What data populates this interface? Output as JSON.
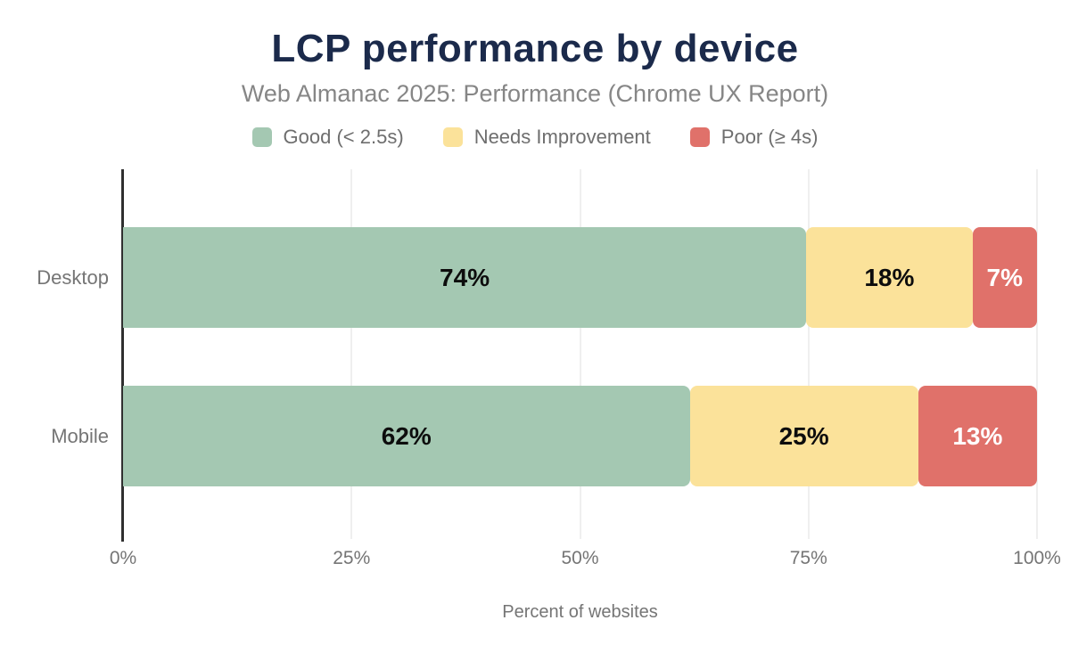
{
  "title": "LCP performance by device",
  "subtitle": "Web Almanac 2025: Performance (Chrome UX Report)",
  "xlabel": "Percent of websites",
  "chart_data": {
    "type": "bar",
    "orientation": "horizontal",
    "stacked": true,
    "title": "LCP performance by device",
    "subtitle": "Web Almanac 2025: Performance (Chrome UX Report)",
    "xlabel": "Percent of websites",
    "categories": [
      "Desktop",
      "Mobile"
    ],
    "series": [
      {
        "name": "Good (< 2.5s)",
        "color": "#a4c8b2",
        "label_color": "#0d0d0d",
        "values": [
          74,
          62
        ]
      },
      {
        "name": "Needs Improvement",
        "color": "#fbe29a",
        "label_color": "#0d0d0d",
        "values": [
          18,
          25
        ]
      },
      {
        "name": "Poor (≥ 4s)",
        "color": "#e0716a",
        "label_color": "#ffffff",
        "values": [
          7,
          13
        ]
      }
    ],
    "value_suffix": "%",
    "x_ticks": [
      "0%",
      "25%",
      "50%",
      "75%",
      "100%"
    ],
    "xlim": [
      0,
      100
    ],
    "grid": true,
    "legend_position": "top"
  },
  "style": {
    "title_color": "#1b2a4b",
    "subtitle_color": "#868686",
    "legend_text_color": "#6e6e6e",
    "axis_text_color": "#757575",
    "gridline_color": "#efefef",
    "axis_line_color": "#303030",
    "background": "#ffffff"
  }
}
